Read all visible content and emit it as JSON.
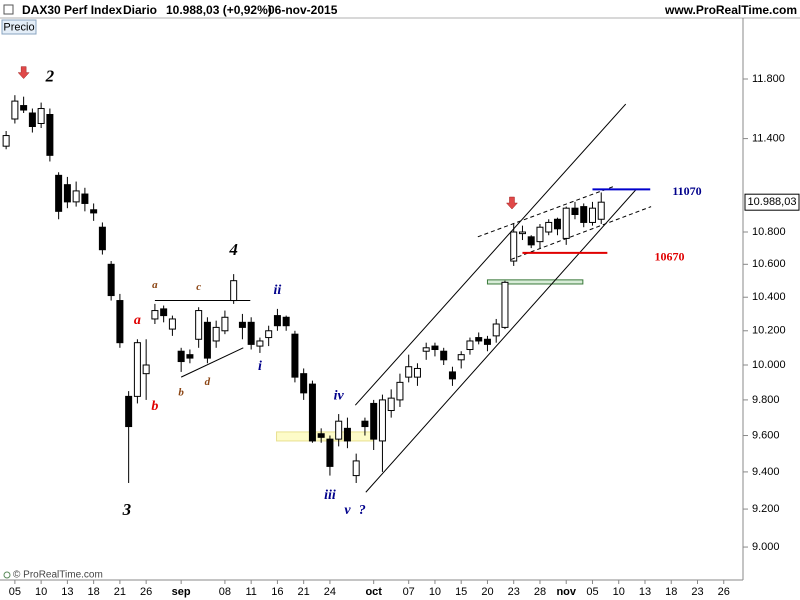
{
  "header": {
    "instrument": "DAX30 Perf Index",
    "period": "Diario",
    "quote": "10.988,03 (+0,92%)",
    "date": "06-nov-2015",
    "site": "www.ProRealTime.com"
  },
  "button": "Precio",
  "footer": "© ProRealTime.com",
  "chart_data": {
    "type": "candlestick",
    "log_scale": true,
    "xlim": [
      -0.7,
      84.2
    ],
    "ylim": [
      8830,
      12224
    ],
    "yticks": [
      {
        "value": 9000,
        "label": "9.000"
      },
      {
        "value": 9200,
        "label": "9.200"
      },
      {
        "value": 9400,
        "label": "9.400"
      },
      {
        "value": 9600,
        "label": "9.600"
      },
      {
        "value": 9800,
        "label": "9.800"
      },
      {
        "value": 10000,
        "label": "10.000"
      },
      {
        "value": 10200,
        "label": "10.200"
      },
      {
        "value": 10400,
        "label": "10.400"
      },
      {
        "value": 10600,
        "label": "10.600"
      },
      {
        "value": 10800,
        "label": "10.800"
      },
      {
        "value": 11400,
        "label": "11.400"
      },
      {
        "value": 11800,
        "label": "11.800"
      }
    ],
    "xticks": [
      {
        "value": 1,
        "label": "05"
      },
      {
        "value": 4,
        "label": "10"
      },
      {
        "value": 7,
        "label": "13"
      },
      {
        "value": 10,
        "label": "18"
      },
      {
        "value": 13,
        "label": "21"
      },
      {
        "value": 16,
        "label": "26"
      },
      {
        "value": 20,
        "label": "sep"
      },
      {
        "value": 25,
        "label": "08"
      },
      {
        "value": 28,
        "label": "11"
      },
      {
        "value": 31,
        "label": "16"
      },
      {
        "value": 34,
        "label": "21"
      },
      {
        "value": 37,
        "label": "24"
      },
      {
        "value": 42,
        "label": "oct"
      },
      {
        "value": 46,
        "label": "07"
      },
      {
        "value": 49,
        "label": "10"
      },
      {
        "value": 52,
        "label": "15"
      },
      {
        "value": 55,
        "label": "20"
      },
      {
        "value": 58,
        "label": "23"
      },
      {
        "value": 61,
        "label": "28"
      },
      {
        "value": 64,
        "label": "nov"
      },
      {
        "value": 67,
        "label": "05"
      },
      {
        "value": 70,
        "label": "10"
      },
      {
        "value": 73,
        "label": "13"
      },
      {
        "value": 76,
        "label": "18"
      },
      {
        "value": 79,
        "label": "23"
      },
      {
        "value": 82,
        "label": "26"
      }
    ],
    "open": [
      11350,
      11530,
      11620,
      11570,
      11500,
      11560,
      11160,
      11100,
      10990,
      11040,
      10940,
      10830,
      10600,
      10380,
      9820,
      9820,
      9950,
      10270,
      10330,
      10210,
      10080,
      10060,
      10150,
      10250,
      10140,
      10200,
      10380,
      10250,
      10250,
      10110,
      10160,
      10290,
      10280,
      10180,
      9950,
      9890,
      9610,
      9580,
      9580,
      9640,
      9380,
      9680,
      9780,
      9570,
      9740,
      9800,
      9930,
      9930,
      10080,
      10110,
      10080,
      9960,
      10030,
      10090,
      10160,
      10150,
      10170,
      10220,
      10620,
      10790,
      10770,
      10740,
      10800,
      10880,
      10760,
      10950,
      10960,
      10860,
      10880
    ],
    "high": [
      11450,
      11690,
      11680,
      11600,
      11640,
      11600,
      11180,
      11150,
      11120,
      11080,
      10980,
      10860,
      10620,
      10420,
      9850,
      10150,
      10150,
      10360,
      10350,
      10290,
      10100,
      10090,
      10340,
      10280,
      10260,
      10320,
      10540,
      10300,
      10280,
      10160,
      10230,
      10330,
      10290,
      10200,
      9980,
      9910,
      9640,
      9600,
      9720,
      9700,
      9500,
      9700,
      9800,
      9830,
      9860,
      9950,
      10060,
      10010,
      10130,
      10130,
      10100,
      9990,
      10080,
      10160,
      10190,
      10170,
      10270,
      10500,
      10850,
      10840,
      10780,
      10850,
      10880,
      10890,
      10960,
      10990,
      10980,
      10990,
      11050
    ],
    "low": [
      11330,
      11500,
      11570,
      11440,
      11470,
      11250,
      10880,
      10950,
      10960,
      10930,
      10870,
      10660,
      10380,
      10100,
      9340,
      9780,
      9800,
      10240,
      10250,
      10170,
      9960,
      10010,
      10100,
      10010,
      10100,
      10180,
      10360,
      10150,
      10090,
      10070,
      10110,
      10200,
      10200,
      9900,
      9800,
      9560,
      9560,
      9380,
      9540,
      9530,
      9340,
      9600,
      9520,
      9400,
      9700,
      9760,
      9900,
      9880,
      10030,
      10050,
      10000,
      9880,
      9980,
      10060,
      10120,
      10080,
      10130,
      10210,
      10590,
      10750,
      10700,
      10700,
      10780,
      10780,
      10720,
      10880,
      10830,
      10840,
      10850
    ],
    "close": [
      11420,
      11650,
      11590,
      11480,
      11600,
      11290,
      10930,
      10990,
      11060,
      10980,
      10920,
      10690,
      10410,
      10130,
      9650,
      10130,
      10000,
      10320,
      10290,
      10270,
      10020,
      10040,
      10320,
      10040,
      10220,
      10280,
      10500,
      10220,
      10120,
      10140,
      10200,
      10230,
      10230,
      9930,
      9840,
      9570,
      9590,
      9430,
      9680,
      9570,
      9460,
      9650,
      9580,
      9800,
      9810,
      9900,
      9990,
      9980,
      10100,
      10090,
      10030,
      9920,
      10060,
      10140,
      10140,
      10120,
      10240,
      10490,
      10800,
      10800,
      10720,
      10830,
      10860,
      10820,
      10950,
      10910,
      10860,
      10950,
      10988.03
    ],
    "last_price_label": "10.988,03",
    "up_color": "#ffffff",
    "down_color": "#000000",
    "annotations": [
      {
        "text": "2",
        "x": 5,
        "y": 11810,
        "color": "#000000",
        "level": "major"
      },
      {
        "text": "3",
        "x": 13.8,
        "y": 9190,
        "color": "#000000",
        "level": "major"
      },
      {
        "text": "4",
        "x": 26,
        "y": 10680,
        "color": "#000000",
        "level": "major"
      },
      {
        "text": "a",
        "x": 15,
        "y": 10260,
        "color": "#e00000",
        "level": "minor"
      },
      {
        "text": "b",
        "x": 17,
        "y": 9760,
        "color": "#e00000",
        "level": "minor"
      },
      {
        "text": "a",
        "x": 17,
        "y": 10470,
        "color": "#8b4513",
        "level": "small"
      },
      {
        "text": "b",
        "x": 20,
        "y": 9840,
        "color": "#8b4513",
        "level": "small"
      },
      {
        "text": "c",
        "x": 22,
        "y": 10460,
        "color": "#8b4513",
        "level": "small"
      },
      {
        "text": "d",
        "x": 23,
        "y": 9900,
        "color": "#8b4513",
        "level": "small"
      },
      {
        "text": "i",
        "x": 29,
        "y": 9990,
        "color": "#00008b",
        "level": "minor"
      },
      {
        "text": "ii",
        "x": 31,
        "y": 10440,
        "color": "#00008b",
        "level": "minor"
      },
      {
        "text": "iii",
        "x": 37,
        "y": 9270,
        "color": "#00008b",
        "level": "minor"
      },
      {
        "text": "iv",
        "x": 38,
        "y": 9820,
        "color": "#00008b",
        "level": "minor"
      },
      {
        "text": "v",
        "x": 39,
        "y": 9190,
        "color": "#00008b",
        "level": "minor"
      },
      {
        "text": "?",
        "x": 40.7,
        "y": 9190,
        "color": "#00008b",
        "level": "minor"
      },
      {
        "text": "11070",
        "x": 77.8,
        "y": 11050,
        "color": "#00008b",
        "level": "price"
      },
      {
        "text": "10670",
        "x": 75.8,
        "y": 10640,
        "color": "#e00000",
        "level": "price"
      }
    ],
    "arrows": [
      {
        "x": 2,
        "y": 11830,
        "color": "#e04848"
      },
      {
        "x": 57.8,
        "y": 10970,
        "color": "#e04848"
      }
    ],
    "lines": [
      {
        "x": [
          39.9,
          70.8
        ],
        "y": [
          9770,
          11630
        ],
        "color": "#000000",
        "style": "solid"
      },
      {
        "x": [
          41.1,
          72
        ],
        "y": [
          9290,
          11070
        ],
        "color": "#000000",
        "style": "solid"
      },
      {
        "x": [
          53.9,
          69.5
        ],
        "y": [
          10770,
          11090
        ],
        "color": "#000000",
        "style": "dashed"
      },
      {
        "x": [
          57.7,
          73.7
        ],
        "y": [
          10630,
          10960
        ],
        "color": "#000000",
        "style": "dashed"
      },
      {
        "x": [
          17,
          27.9
        ],
        "y": [
          10380,
          10380
        ],
        "color": "#000000",
        "style": "solid"
      },
      {
        "x": [
          20,
          27.1
        ],
        "y": [
          9930,
          10100
        ],
        "color": "#000000",
        "style": "solid"
      },
      {
        "x": [
          67,
          73.6
        ],
        "y": [
          11070,
          11070
        ],
        "color": "#0000cc",
        "style": "thick"
      },
      {
        "x": [
          59,
          68.7
        ],
        "y": [
          10670,
          10670
        ],
        "color": "#e00000",
        "style": "thick"
      }
    ],
    "zones": [
      {
        "x": [
          55,
          65.9
        ],
        "y": [
          10480,
          10505
        ],
        "color": "#d8ecd8",
        "border": "#3a7a3a"
      },
      {
        "x": [
          30.9,
          41.9
        ],
        "y": [
          9570,
          9620
        ],
        "color": "#fdfbc8",
        "border": "#e8e090"
      }
    ]
  }
}
